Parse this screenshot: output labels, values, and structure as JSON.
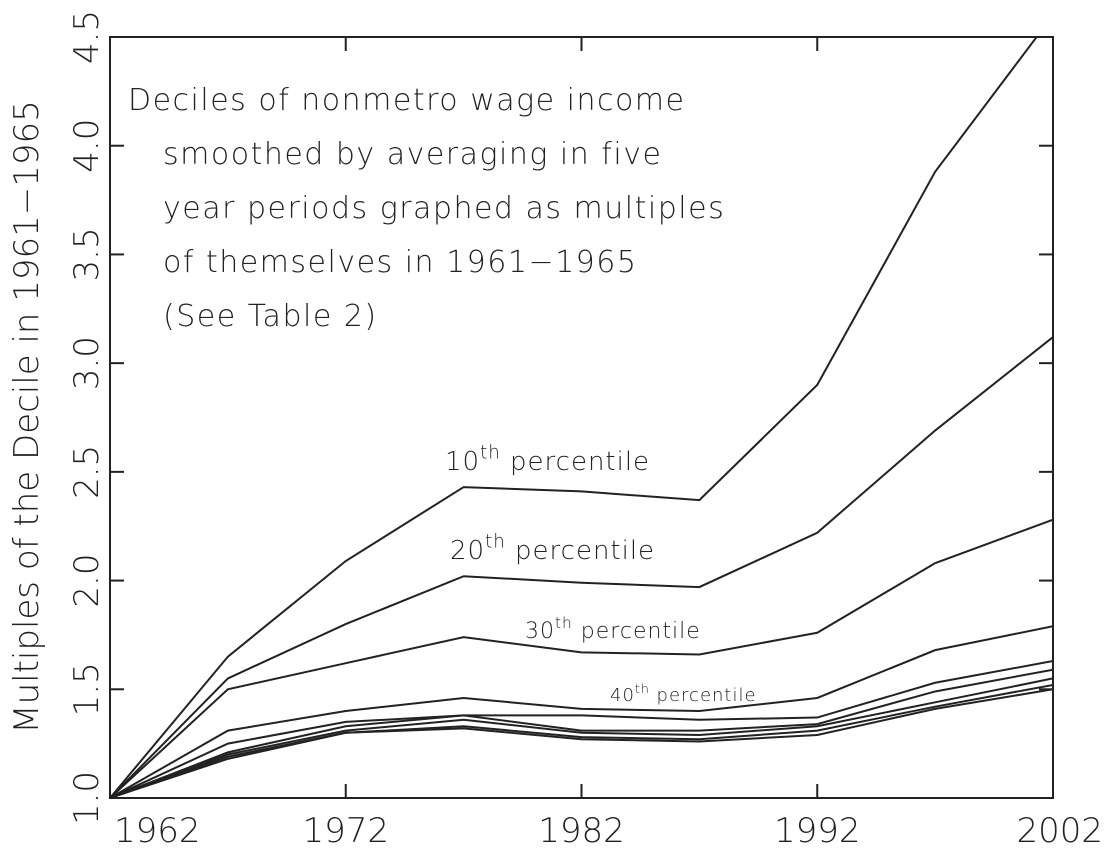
{
  "chart_data": {
    "type": "line",
    "ylabel": "Multiples of the Decile in 1961−1965",
    "annotation": [
      "Deciles of nonmetro wage income",
      "smoothed by averaging in five",
      "year periods graphed as multiples",
      "of themselves in 1961−1965",
      "(See Table 2)"
    ],
    "x": [
      1962,
      1967,
      1972,
      1977,
      1982,
      1987,
      1992,
      1997,
      2002
    ],
    "xlim": [
      1962,
      2002
    ],
    "xticks": [
      1962,
      1972,
      1982,
      1992,
      2002
    ],
    "ylim": [
      1.0,
      4.5
    ],
    "yticks": [
      {
        "value": 1,
        "label": "1.0"
      },
      1.5,
      {
        "value": 2,
        "label": "2.0"
      },
      2.5,
      {
        "value": 3,
        "label": "3.0"
      },
      3.5,
      {
        "value": 4,
        "label": "4.0"
      },
      4.5
    ],
    "color": "#222222",
    "series": [
      {
        "name": "10th percentile",
        "values": [
          1.0,
          1.65,
          2.09,
          2.43,
          2.41,
          2.37,
          2.9,
          3.88,
          4.6
        ]
      },
      {
        "name": "20th percentile",
        "values": [
          1.0,
          1.55,
          1.8,
          2.02,
          1.99,
          1.97,
          2.22,
          2.69,
          3.12
        ]
      },
      {
        "name": "30th percentile",
        "values": [
          1.0,
          1.5,
          1.62,
          1.74,
          1.67,
          1.66,
          1.76,
          2.08,
          2.28
        ]
      },
      {
        "name": "40th percentile",
        "values": [
          1.0,
          1.31,
          1.4,
          1.46,
          1.41,
          1.4,
          1.46,
          1.68,
          1.79
        ]
      },
      {
        "values": [
          1.0,
          1.25,
          1.35,
          1.38,
          1.38,
          1.36,
          1.37,
          1.53,
          1.63
        ]
      },
      {
        "values": [
          1.0,
          1.21,
          1.33,
          1.38,
          1.31,
          1.31,
          1.34,
          1.49,
          1.59
        ]
      },
      {
        "values": [
          1.0,
          1.2,
          1.31,
          1.36,
          1.3,
          1.29,
          1.33,
          1.44,
          1.55
        ]
      },
      {
        "values": [
          1.0,
          1.19,
          1.3,
          1.33,
          1.28,
          1.27,
          1.31,
          1.42,
          1.52
        ]
      },
      {
        "values": [
          1.0,
          1.18,
          1.3,
          1.32,
          1.27,
          1.26,
          1.29,
          1.41,
          1.5
        ]
      }
    ]
  }
}
